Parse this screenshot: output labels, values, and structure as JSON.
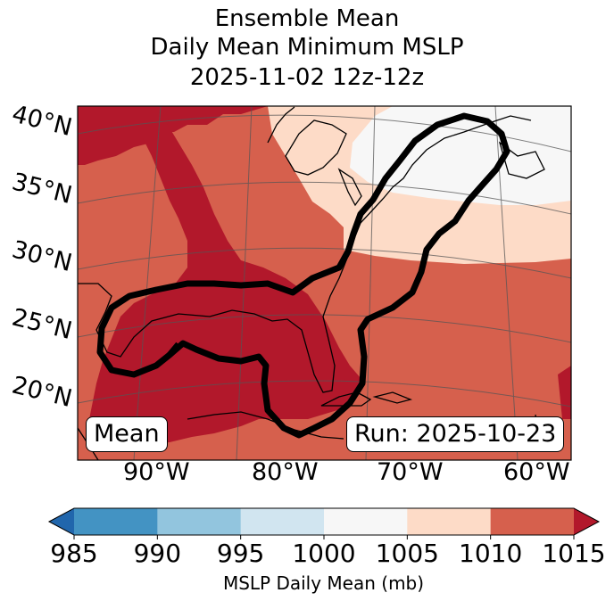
{
  "title": {
    "line1": "Ensemble Mean",
    "line2": "Daily Mean Minimum MSLP",
    "line3": "2025-11-02 12z-12z"
  },
  "lat_labels": [
    "40°N",
    "35°N",
    "30°N",
    "25°N",
    "20°N"
  ],
  "lon_labels": [
    "90°W",
    "80°W",
    "70°W",
    "60°W"
  ],
  "mean_label": "Mean",
  "run_label": "Run: 2025-10-23",
  "colorbar": {
    "ticks": [
      "985",
      "990",
      "995",
      "1000",
      "1005",
      "1010",
      "1015"
    ],
    "label": "MSLP Daily Mean (mb)",
    "colors": {
      "below": "#2166ac",
      "985_990": "#4393c3",
      "990_995": "#92c5de",
      "995_1000": "#d1e5f0",
      "1000_1005": "#f7f7f7",
      "1005_1010": "#fddbc7",
      "1010_1015": "#d6604d",
      "above": "#b2182b"
    }
  }
}
